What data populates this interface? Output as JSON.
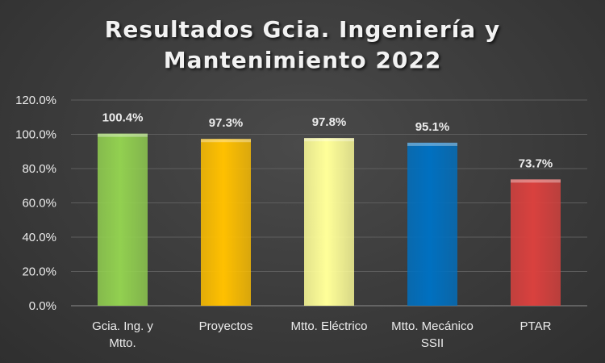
{
  "chart_data": {
    "type": "bar",
    "title_lines": [
      "Resultados Gcia. Ingeniería y",
      "Mantenimiento 2022"
    ],
    "categories": [
      [
        "Gcia. Ing. y",
        "Mtto."
      ],
      [
        "Proyectos"
      ],
      [
        "Mtto. Eléctrico"
      ],
      [
        "Mtto. Mecánico",
        "SSII"
      ],
      [
        "PTAR"
      ]
    ],
    "values": [
      100.4,
      97.3,
      97.8,
      95.1,
      73.7
    ],
    "data_labels": [
      "100.4%",
      "97.3%",
      "97.8%",
      "95.1%",
      "73.7%"
    ],
    "bar_colors": [
      "#92d050",
      "#ffc000",
      "#ffff99",
      "#0070c0",
      "#d9413e"
    ],
    "y_ticks": [
      "0.0%",
      "20.0%",
      "40.0%",
      "60.0%",
      "80.0%",
      "100.0%",
      "120.0%"
    ],
    "ylim": [
      0,
      120
    ],
    "grid": true,
    "legend": "none",
    "xlabel": "",
    "ylabel": ""
  }
}
